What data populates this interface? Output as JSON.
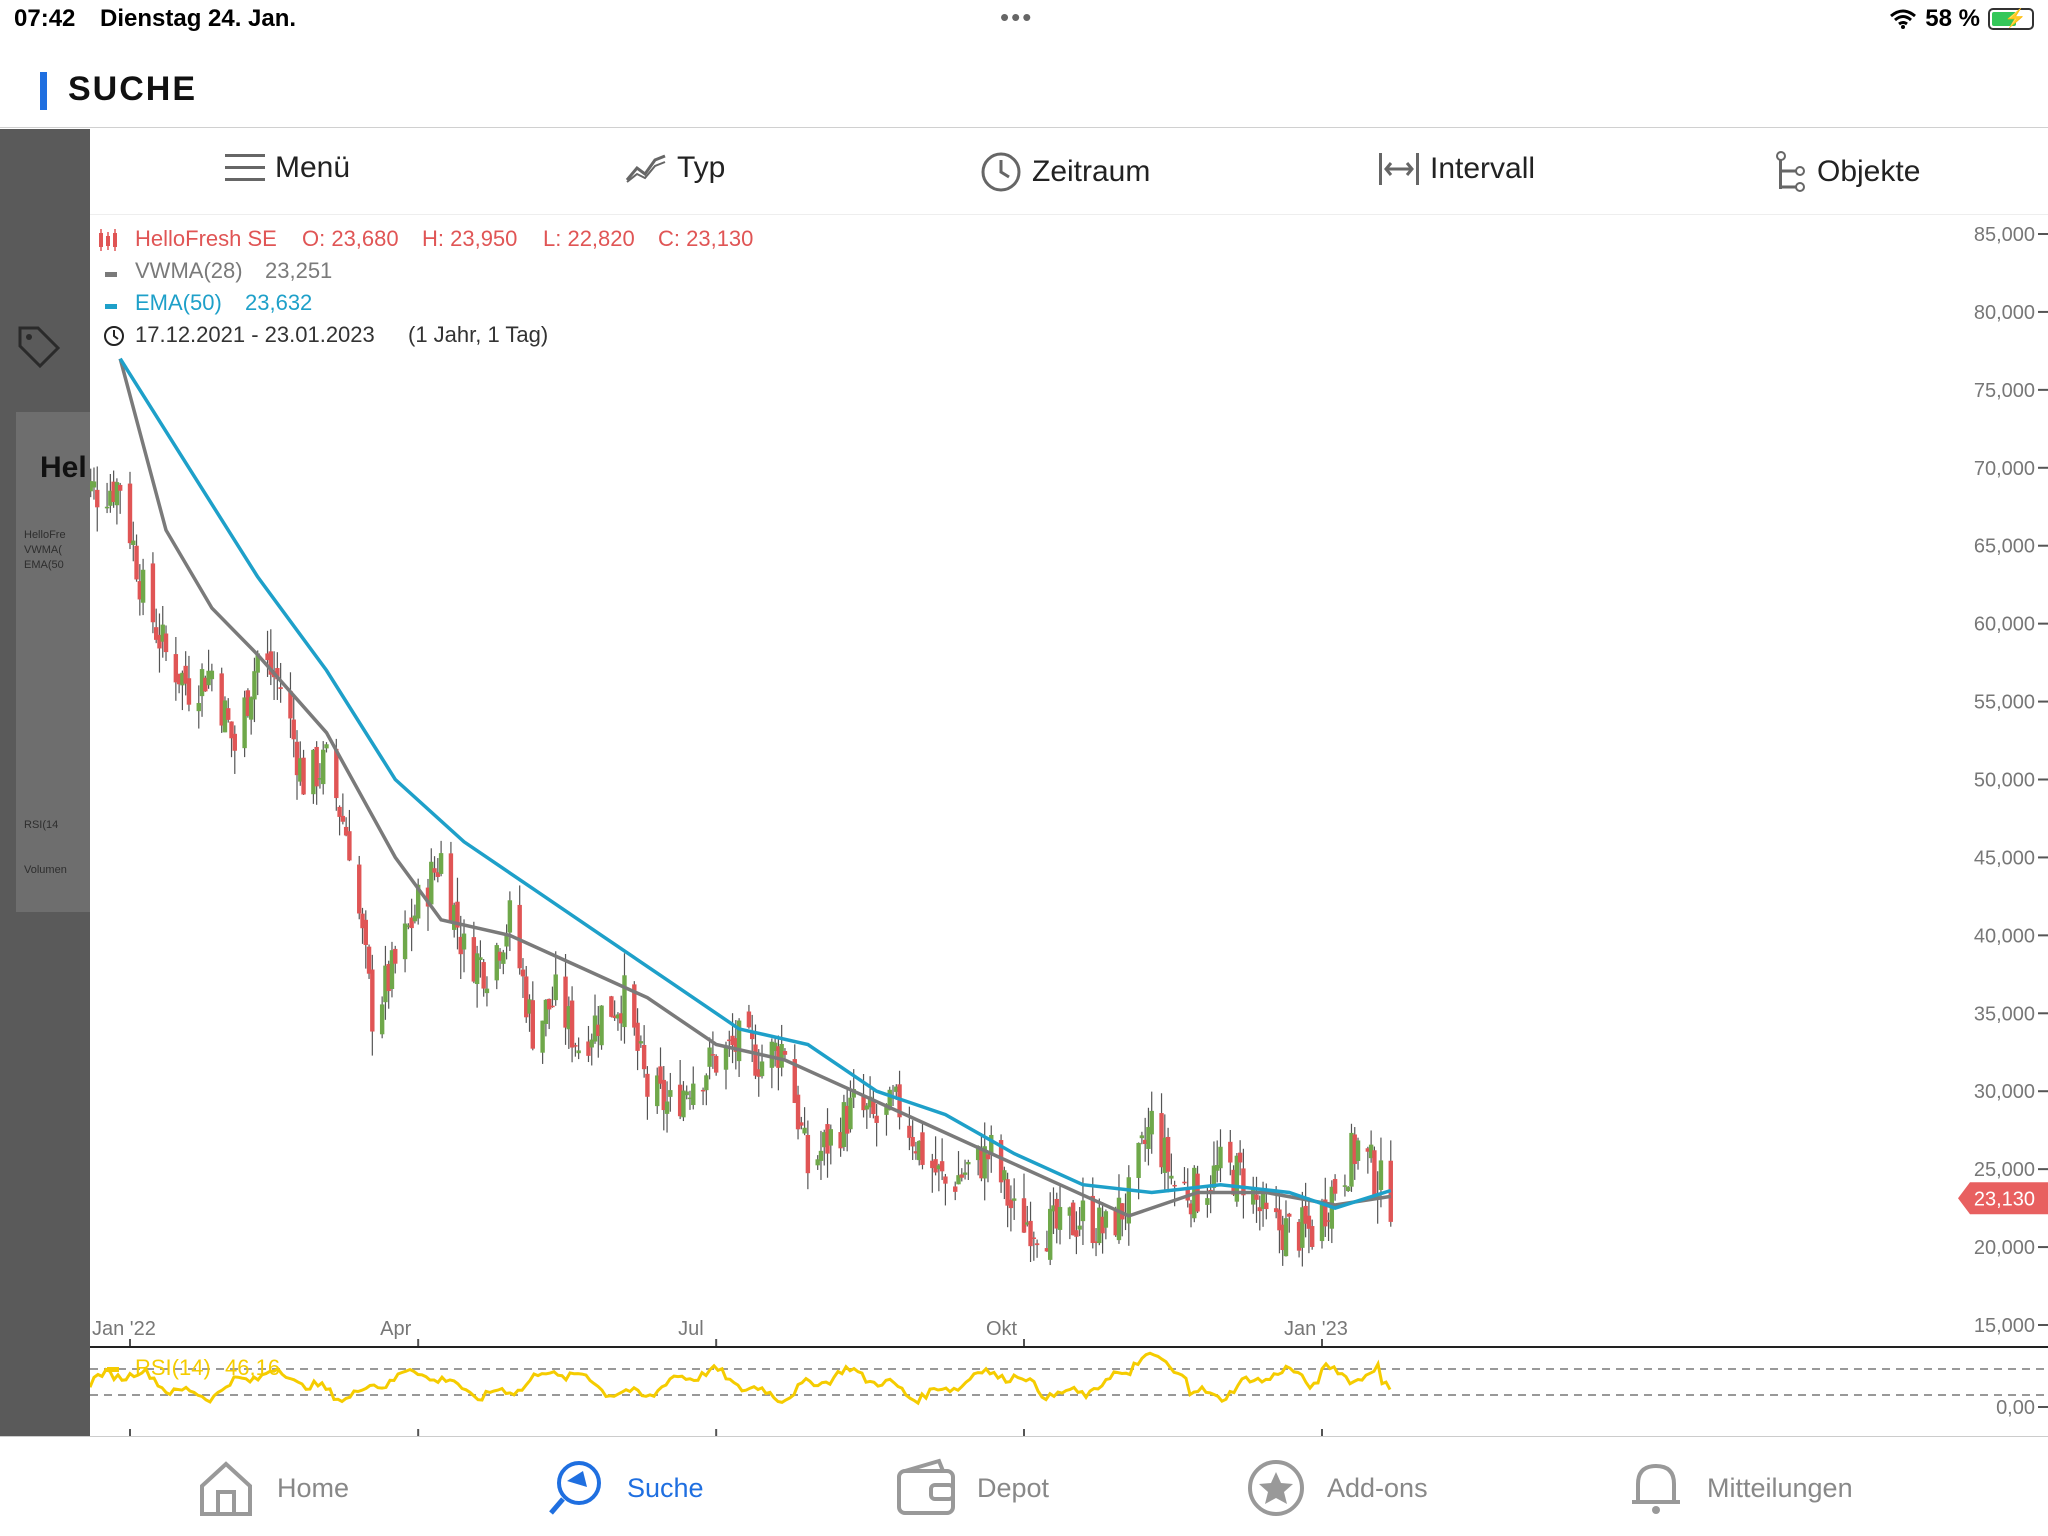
{
  "status_bar": {
    "time": "07:42",
    "date": "Dienstag 24. Jan.",
    "battery": "58 %"
  },
  "header": {
    "title": "SUCHE"
  },
  "background_panel": {
    "partial_title": "Hel",
    "mini_legend": [
      "HelloFre",
      "VWMA(",
      "EMA(50",
      "RSI(14",
      "Volumen"
    ]
  },
  "toolbar": {
    "menu": "Menü",
    "type": "Typ",
    "period": "Zeitraum",
    "interval": "Intervall",
    "objects": "Objekte"
  },
  "legend": {
    "instrument": "HelloFresh SE",
    "open": "O: 23,680",
    "high": "H: 23,950",
    "low": "L: 22,820",
    "close": "C: 23,130",
    "vwma": "VWMA(28)",
    "vwma_value": "23,251",
    "ema": "EMA(50)",
    "ema_value": "23,632",
    "range": "17.12.2021 - 23.01.2023",
    "range_note": "(1 Jahr, 1 Tag)"
  },
  "last_price_label": "23,130",
  "rsi_label": "RSI(14)",
  "rsi_value": "46,16",
  "rsi_axis_label": "0,00",
  "colors": {
    "up": "#6fa84a",
    "down": "#e05555",
    "vwma": "#7a7a7a",
    "ema": "#1ea0c9",
    "rsi": "#f5cc00",
    "accent": "#1f6fe0"
  },
  "chart_data": {
    "type": "candlestick",
    "instrument": "HelloFresh SE",
    "y_ticks": [
      "85,000",
      "80,000",
      "75,000",
      "70,000",
      "65,000",
      "60,000",
      "55,000",
      "50,000",
      "45,000",
      "40,000",
      "35,000",
      "30,000",
      "25,000",
      "20,000",
      "15,000"
    ],
    "ylim": [
      15,
      85
    ],
    "x_ticks": [
      {
        "label": "Jan '22",
        "date": "2022-01-03"
      },
      {
        "label": "Apr",
        "date": "2022-04-01"
      },
      {
        "label": "Jul",
        "date": "2022-07-01"
      },
      {
        "label": "Okt",
        "date": "2022-10-03"
      },
      {
        "label": "Jan '23",
        "date": "2023-01-02"
      }
    ],
    "close_path": [
      [
        "2021-12-17",
        69
      ],
      [
        "2021-12-24",
        68.5
      ],
      [
        "2021-12-31",
        69
      ],
      [
        "2022-01-07",
        62
      ],
      [
        "2022-01-14",
        58
      ],
      [
        "2022-01-21",
        56
      ],
      [
        "2022-01-28",
        57
      ],
      [
        "2022-02-04",
        52
      ],
      [
        "2022-02-11",
        58
      ],
      [
        "2022-02-18",
        56
      ],
      [
        "2022-02-25",
        50
      ],
      [
        "2022-03-04",
        51
      ],
      [
        "2022-03-11",
        46
      ],
      [
        "2022-03-18",
        35
      ],
      [
        "2022-03-25",
        38
      ],
      [
        "2022-04-01",
        42
      ],
      [
        "2022-04-08",
        45
      ],
      [
        "2022-04-15",
        39
      ],
      [
        "2022-04-22",
        38
      ],
      [
        "2022-04-29",
        41
      ],
      [
        "2022-05-06",
        34
      ],
      [
        "2022-05-13",
        36
      ],
      [
        "2022-05-20",
        33
      ],
      [
        "2022-05-27",
        35
      ],
      [
        "2022-06-03",
        36
      ],
      [
        "2022-06-10",
        30
      ],
      [
        "2022-06-17",
        29
      ],
      [
        "2022-06-24",
        31
      ],
      [
        "2022-07-01",
        32
      ],
      [
        "2022-07-08",
        33
      ],
      [
        "2022-07-15",
        32
      ],
      [
        "2022-07-22",
        33
      ],
      [
        "2022-07-29",
        25
      ],
      [
        "2022-08-05",
        27
      ],
      [
        "2022-08-12",
        29
      ],
      [
        "2022-08-19",
        28
      ],
      [
        "2022-08-26",
        29
      ],
      [
        "2022-09-02",
        26
      ],
      [
        "2022-09-09",
        24
      ],
      [
        "2022-09-16",
        25
      ],
      [
        "2022-09-23",
        26
      ],
      [
        "2022-09-30",
        22
      ],
      [
        "2022-10-07",
        21.5
      ],
      [
        "2022-10-14",
        21
      ],
      [
        "2022-10-21",
        22
      ],
      [
        "2022-10-28",
        21
      ],
      [
        "2022-11-04",
        23
      ],
      [
        "2022-11-11",
        28
      ],
      [
        "2022-11-18",
        24
      ],
      [
        "2022-11-25",
        23.5
      ],
      [
        "2022-12-02",
        25
      ],
      [
        "2022-12-09",
        24.5
      ],
      [
        "2022-12-16",
        21.5
      ],
      [
        "2022-12-23",
        21
      ],
      [
        "2022-12-30",
        21
      ],
      [
        "2023-01-06",
        24
      ],
      [
        "2023-01-13",
        26.5
      ],
      [
        "2023-01-20",
        24
      ],
      [
        "2023-01-23",
        23.13
      ]
    ],
    "series": [
      {
        "name": "VWMA(28)",
        "values": [
          [
            "2021-12-31",
            77
          ],
          [
            "2022-01-14",
            66
          ],
          [
            "2022-01-28",
            61
          ],
          [
            "2022-02-11",
            58
          ],
          [
            "2022-03-04",
            53
          ],
          [
            "2022-03-25",
            45
          ],
          [
            "2022-04-08",
            41
          ],
          [
            "2022-04-29",
            40
          ],
          [
            "2022-05-20",
            38
          ],
          [
            "2022-06-10",
            36
          ],
          [
            "2022-07-01",
            33
          ],
          [
            "2022-07-22",
            32
          ],
          [
            "2022-08-12",
            30
          ],
          [
            "2022-09-02",
            28
          ],
          [
            "2022-09-23",
            26
          ],
          [
            "2022-10-14",
            24
          ],
          [
            "2022-11-04",
            22
          ],
          [
            "2022-11-25",
            23.5
          ],
          [
            "2022-12-16",
            23.5
          ],
          [
            "2023-01-06",
            22.7
          ],
          [
            "2023-01-23",
            23.25
          ]
        ]
      },
      {
        "name": "EMA(50)",
        "values": [
          [
            "2021-12-31",
            77
          ],
          [
            "2022-01-21",
            70
          ],
          [
            "2022-02-11",
            63
          ],
          [
            "2022-03-04",
            57
          ],
          [
            "2022-03-25",
            50
          ],
          [
            "2022-04-15",
            46
          ],
          [
            "2022-05-06",
            43
          ],
          [
            "2022-05-27",
            40
          ],
          [
            "2022-06-17",
            37
          ],
          [
            "2022-07-08",
            34
          ],
          [
            "2022-07-29",
            33
          ],
          [
            "2022-08-19",
            30
          ],
          [
            "2022-09-09",
            28.5
          ],
          [
            "2022-09-30",
            26
          ],
          [
            "2022-10-21",
            24
          ],
          [
            "2022-11-11",
            23.5
          ],
          [
            "2022-12-02",
            24
          ],
          [
            "2022-12-23",
            23.5
          ],
          [
            "2023-01-06",
            22.5
          ],
          [
            "2023-01-23",
            23.63
          ]
        ]
      }
    ],
    "last_close": 23.13,
    "rsi": {
      "name": "RSI(14)",
      "last": 46.16,
      "axis_label": "0,00"
    }
  }
}
